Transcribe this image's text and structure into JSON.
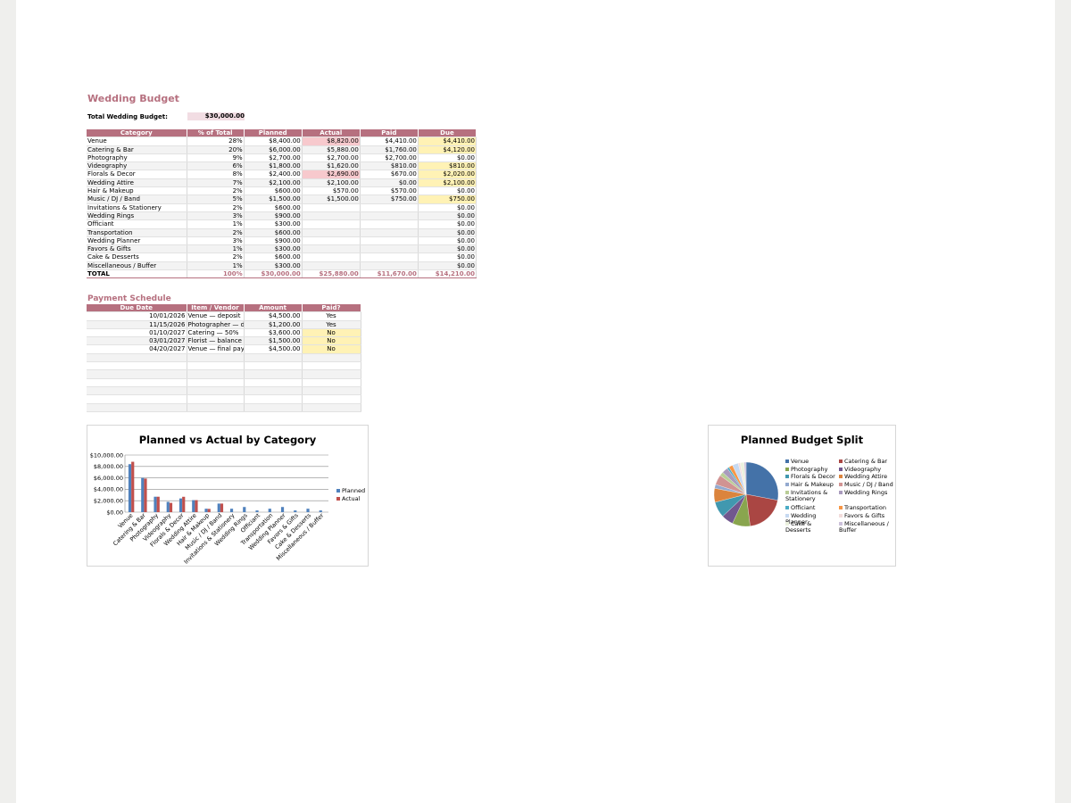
{
  "budget": {
    "title": "Wedding Budget",
    "total_label": "Total Wedding Budget:",
    "total_value": "$30,000.00",
    "headers": [
      "Category",
      "% of Total",
      "Planned",
      "Actual",
      "Paid",
      "Due"
    ],
    "rows": [
      {
        "category": "Venue",
        "pct": "28%",
        "planned": "$8,400.00",
        "actual": "$8,820.00",
        "paid": "$4,410.00",
        "due": "$4,410.00"
      },
      {
        "category": "Catering & Bar",
        "pct": "20%",
        "planned": "$6,000.00",
        "actual": "$5,880.00",
        "paid": "$1,760.00",
        "due": "$4,120.00"
      },
      {
        "category": "Photography",
        "pct": "9%",
        "planned": "$2,700.00",
        "actual": "$2,700.00",
        "paid": "$2,700.00",
        "due": "$0.00"
      },
      {
        "category": "Videography",
        "pct": "6%",
        "planned": "$1,800.00",
        "actual": "$1,620.00",
        "paid": "$810.00",
        "due": "$810.00"
      },
      {
        "category": "Florals & Decor",
        "pct": "8%",
        "planned": "$2,400.00",
        "actual": "$2,690.00",
        "paid": "$670.00",
        "due": "$2,020.00"
      },
      {
        "category": "Wedding Attire",
        "pct": "7%",
        "planned": "$2,100.00",
        "actual": "$2,100.00",
        "paid": "$0.00",
        "due": "$2,100.00"
      },
      {
        "category": "Hair & Makeup",
        "pct": "2%",
        "planned": "$600.00",
        "actual": "$570.00",
        "paid": "$570.00",
        "due": "$0.00"
      },
      {
        "category": "Music / DJ / Band",
        "pct": "5%",
        "planned": "$1,500.00",
        "actual": "$1,500.00",
        "paid": "$750.00",
        "due": "$750.00"
      },
      {
        "category": "Invitations & Stationery",
        "pct": "2%",
        "planned": "$600.00",
        "actual": "",
        "paid": "",
        "due": "$0.00"
      },
      {
        "category": "Wedding Rings",
        "pct": "3%",
        "planned": "$900.00",
        "actual": "",
        "paid": "",
        "due": "$0.00"
      },
      {
        "category": "Officiant",
        "pct": "1%",
        "planned": "$300.00",
        "actual": "",
        "paid": "",
        "due": "$0.00"
      },
      {
        "category": "Transportation",
        "pct": "2%",
        "planned": "$600.00",
        "actual": "",
        "paid": "",
        "due": "$0.00"
      },
      {
        "category": "Wedding Planner",
        "pct": "3%",
        "planned": "$900.00",
        "actual": "",
        "paid": "",
        "due": "$0.00"
      },
      {
        "category": "Favors & Gifts",
        "pct": "1%",
        "planned": "$300.00",
        "actual": "",
        "paid": "",
        "due": "$0.00"
      },
      {
        "category": "Cake & Desserts",
        "pct": "2%",
        "planned": "$600.00",
        "actual": "",
        "paid": "",
        "due": "$0.00"
      },
      {
        "category": "Miscellaneous / Buffer",
        "pct": "1%",
        "planned": "$300.00",
        "actual": "",
        "paid": "",
        "due": "$0.00"
      }
    ],
    "total_row": {
      "label": "TOTAL",
      "pct": "100%",
      "planned": "$30,000.00",
      "actual": "$25,880.00",
      "paid": "$11,670.00",
      "due": "$14,210.00"
    },
    "actual_over_rows": [
      0,
      4
    ],
    "due_highlight_rows": [
      0,
      1,
      3,
      4,
      5,
      7
    ]
  },
  "schedule": {
    "title": "Payment Schedule",
    "headers": [
      "Due Date",
      "Item / Vendor",
      "Amount",
      "Paid?"
    ],
    "rows": [
      {
        "date": "10/01/2026",
        "item": "Venue — deposit",
        "amount": "$4,500.00",
        "paid": "Yes"
      },
      {
        "date": "11/15/2026",
        "item": "Photographer — de",
        "amount": "$1,200.00",
        "paid": "Yes"
      },
      {
        "date": "01/10/2027",
        "item": "Catering — 50%",
        "amount": "$3,600.00",
        "paid": "No"
      },
      {
        "date": "03/01/2027",
        "item": "Florist — balance",
        "amount": "$1,500.00",
        "paid": "No"
      },
      {
        "date": "04/20/2027",
        "item": "Venue — final pay",
        "amount": "$4,500.00",
        "paid": "No"
      }
    ],
    "empty_rows": 7
  },
  "colors": {
    "accent": "#b6707f",
    "planned": "#4f81bd",
    "actual": "#c0504d",
    "over_budget": "#f7c9cd",
    "due_highlight": "#fff2b5"
  },
  "chart_data": [
    {
      "type": "bar",
      "title": "Planned vs Actual by Category",
      "categories": [
        "Venue",
        "Catering & Bar",
        "Photography",
        "Videography",
        "Florals & Decor",
        "Wedding Attire",
        "Hair & Makeup",
        "Music / DJ / Band",
        "Invitations & Stationery",
        "Wedding Rings",
        "Officiant",
        "Transportation",
        "Wedding Planner",
        "Favors & Gifts",
        "Cake & Desserts",
        "Miscellaneous / Buffer"
      ],
      "series": [
        {
          "name": "Planned",
          "color": "#4f81bd",
          "values": [
            8400,
            6000,
            2700,
            1800,
            2400,
            2100,
            600,
            1500,
            600,
            900,
            300,
            600,
            900,
            300,
            600,
            300
          ]
        },
        {
          "name": "Actual",
          "color": "#c0504d",
          "values": [
            8820,
            5880,
            2700,
            1620,
            2690,
            2100,
            570,
            1500,
            0,
            0,
            0,
            0,
            0,
            0,
            0,
            0
          ]
        }
      ],
      "ylim": [
        0,
        10000
      ],
      "yticks": [
        "$0.00",
        "$2,000.00",
        "$4,000.00",
        "$6,000.00",
        "$8,000.00",
        "$10,000.00"
      ],
      "grid": true,
      "legend": "right"
    },
    {
      "type": "pie",
      "title": "Planned Budget Split",
      "labels": [
        "Venue",
        "Catering & Bar",
        "Photography",
        "Videography",
        "Florals & Decor",
        "Wedding Attire",
        "Hair & Makeup",
        "Music / DJ / Band",
        "Invitations & Stationery",
        "Wedding Rings",
        "Officiant",
        "Transportation",
        "Wedding Planner",
        "Favors & Gifts",
        "Cake & Desserts",
        "Miscellaneous / Buffer"
      ],
      "values": [
        8400,
        6000,
        2700,
        1800,
        2400,
        2100,
        600,
        1500,
        600,
        900,
        300,
        600,
        900,
        300,
        600,
        300
      ],
      "colors": [
        "#4472a8",
        "#aa4643",
        "#89a54e",
        "#71588f",
        "#4198af",
        "#db843d",
        "#93a9cf",
        "#d19392",
        "#b9cd96",
        "#a99bbd",
        "#4bacc6",
        "#f79646",
        "#c6d9f1",
        "#f2dcdb",
        "#ebf1de",
        "#ccc1da"
      ],
      "legend": "right"
    }
  ]
}
